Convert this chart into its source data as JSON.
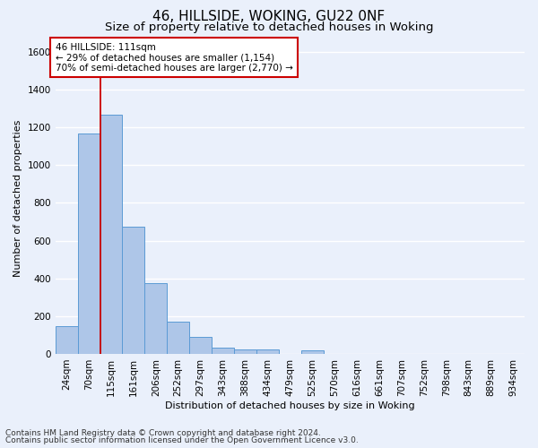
{
  "title1": "46, HILLSIDE, WOKING, GU22 0NF",
  "title2": "Size of property relative to detached houses in Woking",
  "xlabel": "Distribution of detached houses by size in Woking",
  "ylabel": "Number of detached properties",
  "categories": [
    "24sqm",
    "70sqm",
    "115sqm",
    "161sqm",
    "206sqm",
    "252sqm",
    "297sqm",
    "343sqm",
    "388sqm",
    "434sqm",
    "479sqm",
    "525sqm",
    "570sqm",
    "616sqm",
    "661sqm",
    "707sqm",
    "752sqm",
    "798sqm",
    "843sqm",
    "889sqm",
    "934sqm"
  ],
  "values": [
    148,
    1170,
    1270,
    675,
    375,
    170,
    88,
    35,
    25,
    22,
    0,
    18,
    0,
    0,
    0,
    0,
    0,
    0,
    0,
    0,
    0
  ],
  "bar_color": "#aec6e8",
  "bar_edge_color": "#5b9bd5",
  "red_line_index": 2,
  "annotation_text": "46 HILLSIDE: 111sqm\n← 29% of detached houses are smaller (1,154)\n70% of semi-detached houses are larger (2,770) →",
  "annotation_box_color": "white",
  "annotation_box_edge_color": "#cc0000",
  "red_line_color": "#cc0000",
  "ylim": [
    0,
    1650
  ],
  "yticks": [
    0,
    200,
    400,
    600,
    800,
    1000,
    1200,
    1400,
    1600
  ],
  "footer1": "Contains HM Land Registry data © Crown copyright and database right 2024.",
  "footer2": "Contains public sector information licensed under the Open Government Licence v3.0.",
  "bg_color": "#eaf0fb",
  "grid_color": "white",
  "title1_fontsize": 11,
  "title2_fontsize": 9.5,
  "axis_label_fontsize": 8,
  "tick_fontsize": 7.5,
  "annotation_fontsize": 7.5,
  "footer_fontsize": 6.5
}
